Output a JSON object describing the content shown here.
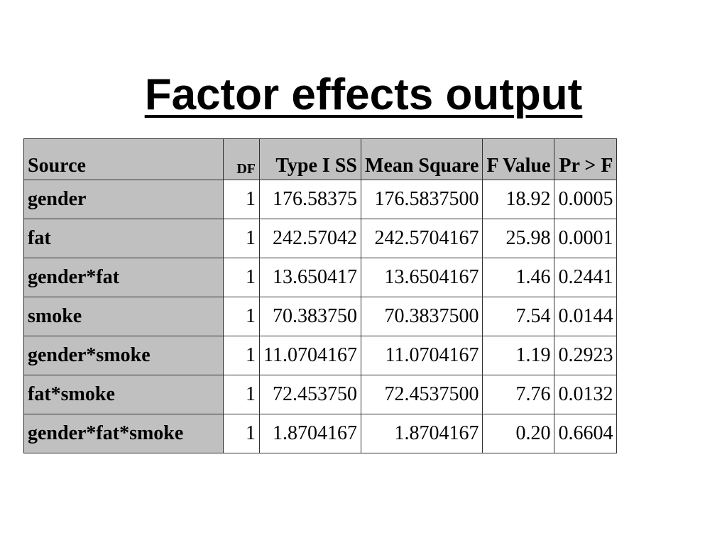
{
  "title": "Factor effects output",
  "table": {
    "headers": [
      "Source",
      "DF",
      "Type I SS",
      "Mean Square",
      "F Value",
      "Pr > F"
    ],
    "rows": [
      [
        "gender",
        "1",
        "176.58375",
        "176.5837500",
        "18.92",
        "0.0005"
      ],
      [
        "fat",
        "1",
        "242.57042",
        "242.5704167",
        "25.98",
        "0.0001"
      ],
      [
        "gender*fat",
        "1",
        "13.650417",
        "13.6504167",
        "1.46",
        "0.2441"
      ],
      [
        "smoke",
        "1",
        "70.383750",
        "70.3837500",
        "7.54",
        "0.0144"
      ],
      [
        "gender*smoke",
        "1",
        "11.0704167",
        "11.0704167",
        "1.19",
        "0.2923"
      ],
      [
        "fat*smoke",
        "1",
        "72.453750",
        "72.4537500",
        "7.76",
        "0.0132"
      ],
      [
        "gender*fat*smoke",
        "1",
        "1.8704167",
        "1.8704167",
        "0.20",
        "0.6604"
      ]
    ]
  }
}
